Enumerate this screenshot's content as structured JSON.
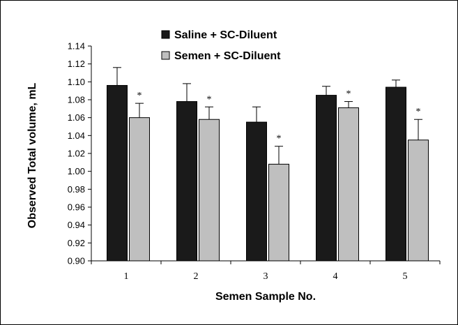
{
  "chart_data": {
    "type": "bar",
    "title": "",
    "xlabel": "Semen Sample No.",
    "ylabel": "Observed Total volume, mL",
    "ylim": [
      0.9,
      1.14
    ],
    "y_ticks": [
      "0.90",
      "0.92",
      "0.94",
      "0.96",
      "0.98",
      "1.00",
      "1.02",
      "1.04",
      "1.06",
      "1.08",
      "1.10",
      "1.12",
      "1.14"
    ],
    "categories": [
      "1",
      "2",
      "3",
      "4",
      "5"
    ],
    "legend_position": "top-center",
    "grid": false,
    "significance_marker": "*",
    "series": [
      {
        "name": "Saline + SC-Diluent",
        "color": "#1a1a1a",
        "values": [
          1.096,
          1.078,
          1.055,
          1.085,
          1.094
        ],
        "errors": [
          0.02,
          0.02,
          0.017,
          0.01,
          0.008
        ]
      },
      {
        "name": "Semen + SC-Diluent",
        "color": "#bfbfbf",
        "values": [
          1.06,
          1.058,
          1.008,
          1.071,
          1.035
        ],
        "errors": [
          0.016,
          0.014,
          0.02,
          0.007,
          0.023
        ],
        "significant": [
          true,
          true,
          true,
          true,
          true
        ]
      }
    ]
  }
}
